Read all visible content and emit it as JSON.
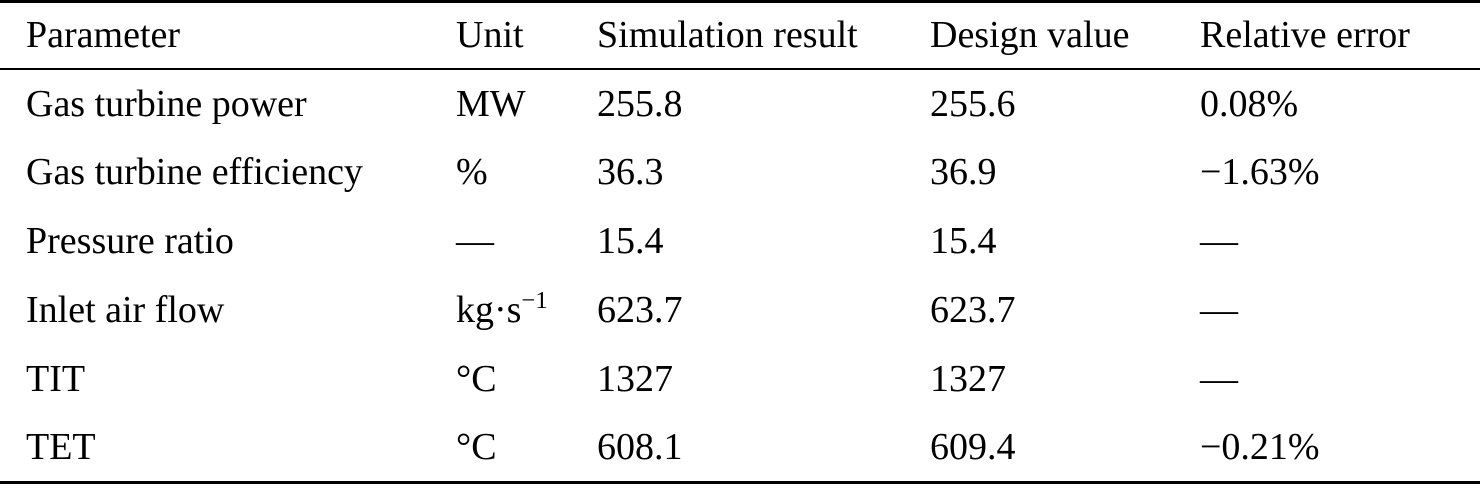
{
  "table": {
    "columns": [
      "Parameter",
      "Unit",
      "Simulation result",
      "Design value",
      "Relative error"
    ],
    "rows": [
      {
        "parameter": "Gas turbine power",
        "unit": "MW",
        "unit_sup": "",
        "simulation": "255.8",
        "design": "255.6",
        "error": "0.08%"
      },
      {
        "parameter": "Gas turbine efficiency",
        "unit": "%",
        "unit_sup": "",
        "simulation": "36.3",
        "design": "36.9",
        "error": "−1.63%"
      },
      {
        "parameter": "Pressure ratio",
        "unit": "—",
        "unit_sup": "",
        "simulation": "15.4",
        "design": "15.4",
        "error": "—"
      },
      {
        "parameter": "Inlet air flow",
        "unit": "kg·s",
        "unit_sup": "−1",
        "simulation": "623.7",
        "design": "623.7",
        "error": "—"
      },
      {
        "parameter": "TIT",
        "unit": "°C",
        "unit_sup": "",
        "simulation": "1327",
        "design": "1327",
        "error": "—"
      },
      {
        "parameter": "TET",
        "unit": "°C",
        "unit_sup": "",
        "simulation": "608.1",
        "design": "609.4",
        "error": "−0.21%"
      }
    ]
  },
  "colors": {
    "text": "#000000",
    "background": "#ffffff",
    "rule": "#000000"
  }
}
